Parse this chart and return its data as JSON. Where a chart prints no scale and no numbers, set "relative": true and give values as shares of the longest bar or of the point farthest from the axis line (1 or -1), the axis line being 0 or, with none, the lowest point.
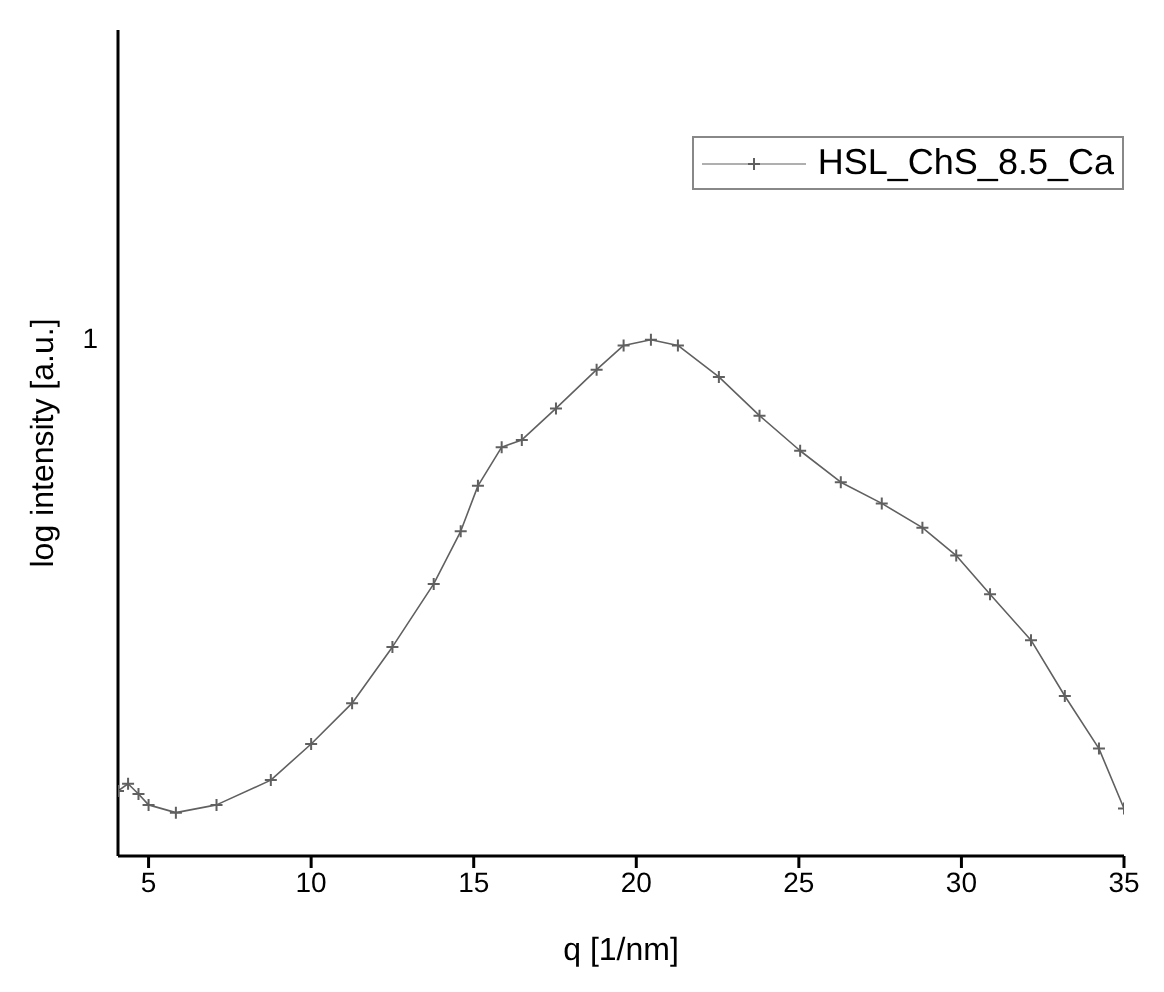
{
  "chart_data": {
    "type": "line",
    "xlabel": "q [1/nm]",
    "ylabel": "log intensity [a.u.]",
    "relative": true,
    "annotations": [
      "1"
    ],
    "xlim": [
      4.06,
      35
    ],
    "xticks": [
      5,
      10,
      15,
      20,
      25,
      30,
      35
    ],
    "legend": "top right",
    "marker": "cross",
    "line_style": "solid",
    "series": [
      {
        "name": "HSL_ChS_8.5_Ca",
        "color": "#606060",
        "x": [
          4.06,
          4.37,
          4.69,
          5.0,
          5.84,
          7.09,
          8.76,
          10.0,
          11.26,
          12.5,
          13.77,
          14.6,
          15.13,
          15.86,
          16.48,
          17.53,
          18.78,
          19.61,
          20.45,
          21.28,
          22.54,
          23.79,
          25.04,
          26.29,
          27.55,
          28.8,
          29.84,
          30.88,
          32.14,
          33.18,
          34.23,
          35.0
        ],
        "values": [
          0.126,
          0.14,
          0.12,
          0.099,
          0.084,
          0.099,
          0.147,
          0.217,
          0.296,
          0.405,
          0.527,
          0.629,
          0.717,
          0.792,
          0.806,
          0.867,
          0.942,
          0.989,
          1.0,
          0.989,
          0.928,
          0.853,
          0.785,
          0.724,
          0.683,
          0.636,
          0.582,
          0.507,
          0.418,
          0.31,
          0.208,
          0.092
        ]
      }
    ]
  }
}
